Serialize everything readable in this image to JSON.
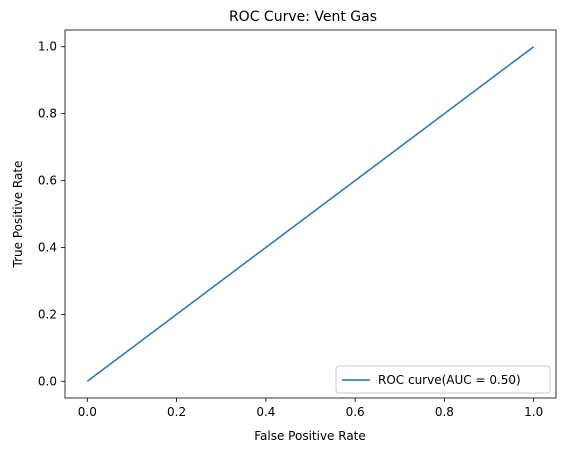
{
  "chart_data": {
    "type": "line",
    "title": "ROC Curve: Vent Gas",
    "xlabel": "False Positive Rate",
    "ylabel": "True Positive Rate",
    "xlim": [
      -0.05,
      1.05
    ],
    "ylim": [
      -0.05,
      1.05
    ],
    "xticks": [
      0.0,
      0.2,
      0.4,
      0.6,
      0.8,
      1.0
    ],
    "yticks": [
      0.0,
      0.2,
      0.4,
      0.6,
      0.8,
      1.0
    ],
    "xtick_labels": [
      "0.0",
      "0.2",
      "0.4",
      "0.6",
      "0.8",
      "1.0"
    ],
    "ytick_labels": [
      "0.0",
      "0.2",
      "0.4",
      "0.6",
      "0.8",
      "1.0"
    ],
    "grid": false,
    "legend_position": "lower-right",
    "series": [
      {
        "name": "ROC curve(AUC = 0.50)",
        "x": [
          0.0,
          1.0
        ],
        "y": [
          0.0,
          1.0
        ],
        "color": "#1f77b4"
      }
    ]
  }
}
